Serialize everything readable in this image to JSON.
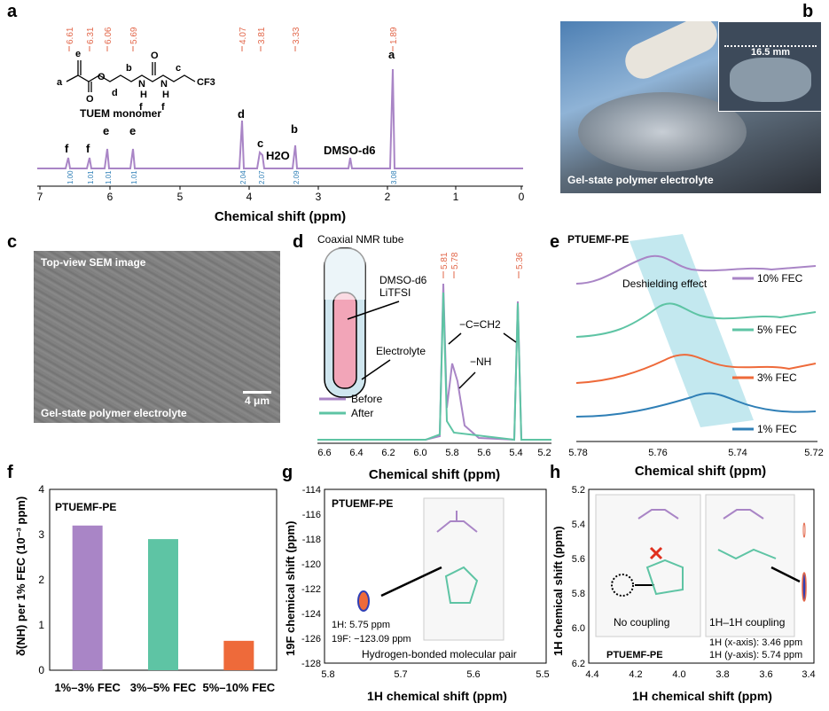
{
  "panels": {
    "a": {
      "letter": "a",
      "peak_labels": [
        "6.61",
        "6.31",
        "6.06",
        "5.69",
        "4.07",
        "3.81",
        "3.33",
        "1.89"
      ],
      "peak_letters": [
        "f",
        "f",
        "e",
        "e",
        "d",
        "c",
        "b",
        "a"
      ],
      "integrals": [
        "1.00",
        "1.01",
        "1.01",
        "1.01",
        "2.04",
        "2.07",
        "2.09",
        "3.08"
      ],
      "monomer_label": "TUEM monomer",
      "solvent_label": "DMSO-d6",
      "water_label": "H2O",
      "xlabel": "Chemical shift (ppm)",
      "xticks": [
        "7",
        "6",
        "5",
        "4",
        "3",
        "2",
        "1",
        "0"
      ],
      "structure_atoms": {
        "a": "a",
        "b": "b",
        "c": "c",
        "d": "d",
        "e": "e",
        "f": "f",
        "O": "O",
        "N": "N",
        "H": "H",
        "CF3": "CF3"
      }
    },
    "b": {
      "letter": "b",
      "scale_label": "16.5 mm",
      "caption": "Gel-state polymer electrolyte"
    },
    "c": {
      "letter": "c",
      "top_label": "Top-view SEM image",
      "bottom_label": "Gel-state polymer electrolyte",
      "scale_label": "4 μm"
    },
    "d": {
      "letter": "d",
      "peak_labels": [
        "5.81",
        "5.78",
        "5.36"
      ],
      "tube_label": "Coaxial NMR tube",
      "dmso_label": "DMSO-d6",
      "litfsi_label": "LiTFSI",
      "electrolyte_label": "Electrolyte",
      "cch2_label": "−C=CH2",
      "nh_label": "−NH",
      "legend": [
        "Before",
        "After"
      ],
      "xlabel": "Chemical shift (ppm)",
      "xticks": [
        "6.6",
        "6.4",
        "6.2",
        "6.0",
        "5.8",
        "5.6",
        "5.4",
        "5.2"
      ]
    },
    "e": {
      "letter": "e",
      "title": "PTUEMF-PE",
      "annotation": "Deshielding effect",
      "series": [
        "10% FEC",
        "5% FEC",
        "3% FEC",
        "1% FEC"
      ],
      "xlabel": "Chemical shift (ppm)",
      "xticks": [
        "5.78",
        "5.76",
        "5.74",
        "5.72"
      ]
    },
    "f": {
      "letter": "f",
      "title": "PTUEMF-PE",
      "ylabel": "δ(NH) per 1% FEC (10⁻³ ppm)",
      "yticks": [
        "0",
        "1",
        "2",
        "3",
        "4"
      ]
    },
    "g": {
      "letter": "g",
      "title": "PTUEMF-PE",
      "h_shift": "1H: 5.75 ppm",
      "f_shift": "19F: −123.09 ppm",
      "caption": "Hydrogen-bonded molecular pair",
      "xlabel": "1H chemical shift (ppm)",
      "ylabel": "19F chemical shift (ppm)",
      "xticks": [
        "5.8",
        "5.7",
        "5.6",
        "5.5"
      ],
      "yticks": [
        "-114",
        "-116",
        "-118",
        "-120",
        "-122",
        "-124",
        "-126",
        "-128"
      ]
    },
    "h": {
      "letter": "h",
      "title": "PTUEMF-PE",
      "no_coupling": "No coupling",
      "coupling": "1H–1H coupling",
      "x_shift": "1H (x-axis): 3.46 ppm",
      "y_shift": "1H (y-axis): 5.74 ppm",
      "xlabel": "1H chemical shift (ppm)",
      "ylabel": "1H chemical shift (ppm)",
      "xticks": [
        "4.4",
        "4.2",
        "4.0",
        "3.8",
        "3.6",
        "3.4"
      ],
      "yticks": [
        "5.2",
        "5.4",
        "5.6",
        "5.8",
        "6.0",
        "6.2"
      ]
    }
  },
  "colors": {
    "purple": "#a985c6",
    "teal": "#5ec4a4",
    "orange": "#ee6a3a",
    "blue": "#2f7fb6",
    "red": "#e2674a",
    "cyan_band": "#b8e4ec"
  },
  "chart_data": [
    {
      "type": "bar",
      "categories": [
        "1%–3% FEC",
        "3%–5% FEC",
        "5%–10% FEC"
      ],
      "values": [
        3.2,
        2.9,
        0.65
      ],
      "colors": [
        "#a985c6",
        "#5ec4a4",
        "#ee6a3a"
      ],
      "ylim": [
        0,
        4
      ],
      "title": "PTUEMF-PE",
      "ylabel": "δ(NH) per 1% FEC (10⁻³ ppm)"
    }
  ]
}
